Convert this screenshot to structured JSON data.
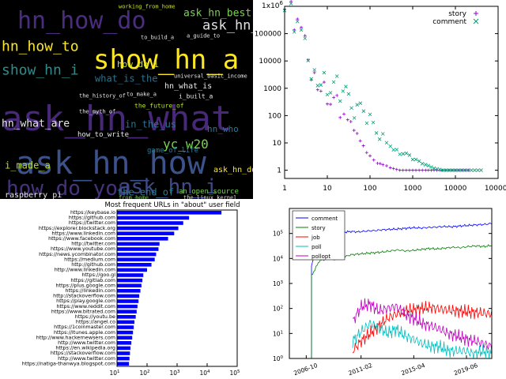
{
  "chart_data": [
    {
      "type": "other",
      "kind": "wordcloud",
      "background": "#000000",
      "words": [
        {
          "text": "hn_how_do",
          "size": 30,
          "color": "#4b2d80"
        },
        {
          "text": "ask_hn_best",
          "size": 13,
          "color": "#7ad151"
        },
        {
          "text": "ask_hn_why",
          "size": 17,
          "color": "#e0e0e0"
        },
        {
          "text": "working_from_home",
          "size": 7,
          "color": "#c8e020"
        },
        {
          "text": "hn_how_to",
          "size": 18,
          "color": "#fde725"
        },
        {
          "text": "show_hn_a",
          "size": 34,
          "color": "#fde725"
        },
        {
          "text": "show_hn_i",
          "size": 18,
          "color": "#2c8c8c"
        },
        {
          "text": "how_do_i",
          "size": 11,
          "color": "#c8e020"
        },
        {
          "text": "hn_what_is",
          "size": 10,
          "color": "#e8e8e8"
        },
        {
          "text": "what_is_the",
          "size": 12,
          "color": "#2c728e"
        },
        {
          "text": "ask_hn_what",
          "size": 44,
          "color": "#482878"
        },
        {
          "text": "hn_what_are",
          "size": 13,
          "color": "#e8e8e8"
        },
        {
          "text": "in_the_us",
          "size": 12,
          "color": "#2c728e"
        },
        {
          "text": "yc_w20",
          "size": 16,
          "color": "#7ad151"
        },
        {
          "text": "ask_hn_how",
          "size": 40,
          "color": "#3b528b"
        },
        {
          "text": "i_made_a",
          "size": 12,
          "color": "#b5de2b"
        },
        {
          "text": "how_do_you",
          "size": 26,
          "color": "#46327e"
        },
        {
          "text": "ask_hn_i",
          "size": 26,
          "color": "#3e4a89"
        },
        {
          "text": "raspberry_pi",
          "size": 10,
          "color": "#e8e8e8"
        },
        {
          "text": "the_end_of",
          "size": 12,
          "color": "#2a788e"
        },
        {
          "text": "an_open_source",
          "size": 9,
          "color": "#7ad151"
        },
        {
          "text": "how_to_write",
          "size": 9,
          "color": "#e8e8e8"
        },
        {
          "text": "game_of_life",
          "size": 9,
          "color": "#2a788e"
        },
        {
          "text": "ask_hn_do",
          "size": 10,
          "color": "#fde725"
        },
        {
          "text": "the_future_of",
          "size": 8,
          "color": "#b5de2b"
        },
        {
          "text": "universal_basic_income",
          "size": 7,
          "color": "#e8e8e8"
        },
        {
          "text": "to_build_a",
          "size": 7,
          "color": "#e8e8e8"
        },
        {
          "text": "a_guide_to",
          "size": 7,
          "color": "#e8e8e8"
        },
        {
          "text": "from_home",
          "size": 7,
          "color": "#7ad151"
        },
        {
          "text": "the_linux_kernel",
          "size": 7,
          "color": "#e8e8e8"
        },
        {
          "text": "hn_who",
          "size": 11,
          "color": "#2a788e"
        },
        {
          "text": "i_built_a",
          "size": 8,
          "color": "#e8e8e8"
        },
        {
          "text": "to_make_a",
          "size": 7,
          "color": "#e8e8e8"
        },
        {
          "text": "the_history_of",
          "size": 7,
          "color": "#e8e8e8"
        },
        {
          "text": "the_myth_of",
          "size": 7,
          "color": "#e8e8e8"
        }
      ]
    },
    {
      "type": "scatter",
      "xscale": "log",
      "yscale": "log",
      "xlim": [
        1,
        100000
      ],
      "ylim": [
        0.5,
        1000000
      ],
      "offset_text": "1x10",
      "offset_exp": "6",
      "legend_position": "top-right",
      "x_ticks": [
        "1",
        "10",
        "100",
        "1000",
        "10000",
        "100000"
      ],
      "y_ticks": [
        "1",
        "10",
        "100",
        "1000",
        "10000",
        "100000"
      ],
      "series": [
        {
          "name": "story",
          "marker": "+",
          "color": "#9400d3",
          "points": [
            [
              1,
              800000
            ],
            [
              2,
              60000
            ],
            [
              3,
              22000
            ],
            [
              5,
              5500
            ],
            [
              10,
              850
            ],
            [
              20,
              140
            ],
            [
              30,
              50
            ],
            [
              50,
              14
            ],
            [
              70,
              7
            ],
            [
              100,
              4
            ],
            [
              150,
              2
            ],
            [
              200,
              1.6
            ],
            [
              300,
              1.2
            ],
            [
              500,
              1
            ],
            [
              1000,
              1
            ],
            [
              2000,
              1
            ],
            [
              5000,
              1
            ],
            [
              10000,
              1
            ],
            [
              20000,
              1
            ]
          ]
        },
        {
          "name": "comment",
          "marker": "x",
          "color": "#009e73",
          "points": [
            [
              1,
              700000
            ],
            [
              2,
              50000
            ],
            [
              3,
              18000
            ],
            [
              5,
              7000
            ],
            [
              10,
              2200
            ],
            [
              20,
              650
            ],
            [
              50,
              160
            ],
            [
              100,
              55
            ],
            [
              200,
              18
            ],
            [
              300,
              10
            ],
            [
              500,
              5
            ],
            [
              1000,
              2.5
            ],
            [
              2000,
              1.5
            ],
            [
              5000,
              1
            ],
            [
              10000,
              1
            ],
            [
              20000,
              1
            ],
            [
              40000,
              1
            ]
          ]
        }
      ]
    },
    {
      "type": "bar",
      "orientation": "horizontal",
      "title": "Most frequent URLs in \"about\" user field",
      "xscale": "log",
      "xlim": [
        10,
        100000
      ],
      "x_ticks": [
        {
          "base": "10",
          "exp": "1"
        },
        {
          "base": "10",
          "exp": "2"
        },
        {
          "base": "10",
          "exp": "3"
        },
        {
          "base": "10",
          "exp": "4"
        },
        {
          "base": "10",
          "exp": "5"
        }
      ],
      "bar_color": "#0000ff",
      "categories": [
        "https://keybase.io",
        "https://github.com",
        "https://twitter.com",
        "https://explorer.blockstack.org",
        "https://www.linkedin.com",
        "https://www.facebook.com",
        "http://twitter.com",
        "https://www.youtube.com",
        "https://news.ycombinator.com",
        "https://medium.com",
        "http://github.com",
        "http://www.linkedin.com",
        "https://goo.gl",
        "https://gitlab.com",
        "https://plus.google.com",
        "https://linkedin.com",
        "http://stackoverflow.com",
        "https://play.google.com",
        "https://www.reddit.com",
        "https://www.bitrated.com",
        "https://youtu.be",
        "https://angel.co",
        "https://1coinmaster.com",
        "https://itunes.apple.com",
        "http://www.hackernewsers.com",
        "http://www.twitter.com",
        "https://en.wikipedia.org",
        "https://stackoverflow.com",
        "http://www.twitter.com",
        "https://natiga-thanwya.blogspot.com"
      ],
      "values": [
        30000,
        2500,
        1600,
        1100,
        800,
        500,
        260,
        240,
        200,
        180,
        140,
        100,
        75,
        70,
        65,
        60,
        55,
        52,
        48,
        45,
        42,
        38,
        36,
        34,
        32,
        30,
        28,
        27,
        26,
        25
      ]
    },
    {
      "type": "line",
      "yscale": "log",
      "ylim": [
        1,
        1000000
      ],
      "y_ticks": [
        {
          "base": "10",
          "exp": "0"
        },
        {
          "base": "10",
          "exp": "1"
        },
        {
          "base": "10",
          "exp": "2"
        },
        {
          "base": "10",
          "exp": "3"
        },
        {
          "base": "10",
          "exp": "4"
        },
        {
          "base": "10",
          "exp": "5"
        }
      ],
      "x_ticks": [
        "2006-10",
        "2011-02",
        "2015-04",
        "2019-06"
      ],
      "xlim": [
        "2006-10",
        "2021-06"
      ],
      "legend_position": "top-left",
      "series": [
        {
          "name": "comment",
          "color": "#0000ff",
          "start": "2007-03",
          "end": "2021-06",
          "values": [
            5000,
            60000,
            90000,
            100000,
            110000,
            120000,
            115000,
            125000,
            130000,
            140000,
            145000,
            150000,
            160000,
            170000,
            165000,
            175000,
            180000,
            190000,
            185000,
            200000,
            210000,
            220000,
            230000,
            250000
          ]
        },
        {
          "name": "story",
          "color": "#008000",
          "start": "2007-03",
          "end": "2021-06",
          "values": [
            2000,
            8000,
            10000,
            9000,
            11000,
            14000,
            15000,
            16000,
            17000,
            18000,
            20000,
            22000,
            20000,
            21000,
            23000,
            25000,
            24000,
            26000,
            28000,
            27000,
            30000,
            32000,
            30000,
            33000
          ]
        },
        {
          "name": "job",
          "color": "#ff0000",
          "start": "2010-06",
          "end": "2021-06",
          "values": [
            2,
            5,
            10,
            20,
            40,
            60,
            80,
            90,
            100,
            110,
            95,
            85,
            80,
            75,
            70,
            65,
            60
          ]
        },
        {
          "name": "poll",
          "color": "#00bfbf",
          "start": "2010-06",
          "end": "2021-06",
          "values": [
            5,
            12,
            25,
            18,
            10,
            15,
            8,
            6,
            4,
            3,
            3,
            2,
            2,
            2,
            1.5,
            2,
            1.5
          ]
        },
        {
          "name": "pollopt",
          "color": "#bf00bf",
          "start": "2010-06",
          "end": "2021-06",
          "values": [
            30,
            120,
            150,
            80,
            100,
            120,
            60,
            40,
            25,
            20,
            15,
            10,
            8,
            6,
            5,
            4,
            3
          ]
        }
      ]
    }
  ]
}
